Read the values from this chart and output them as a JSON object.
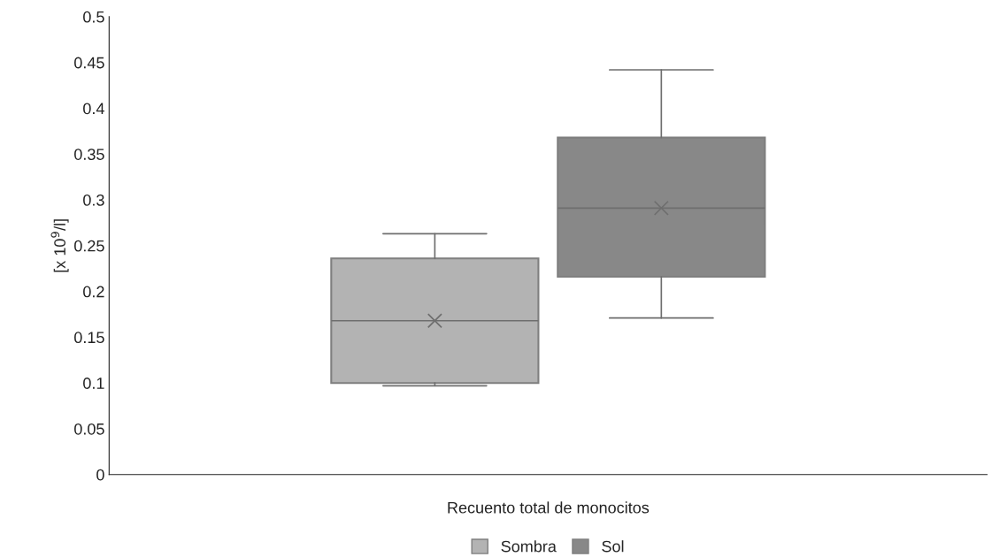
{
  "chart_data": {
    "type": "box",
    "ylabel": "[x 10$^{9}$/l]",
    "categories": [
      "Recuento total de monocitos"
    ],
    "ylim": [
      0,
      0.5
    ],
    "yticks": [
      0,
      0.05,
      0.1,
      0.15,
      0.2,
      0.25,
      0.3,
      0.35,
      0.4,
      0.45,
      0.5
    ],
    "grid": false,
    "legend": "bottom",
    "series": [
      {
        "name": "Sombra",
        "color": "#b3b3b3",
        "boxes": [
          {
            "low": 0.097,
            "q1": 0.1,
            "median": 0.168,
            "q3": 0.236,
            "high": 0.263,
            "mean": 0.168
          }
        ]
      },
      {
        "name": "Sol",
        "color": "#888888",
        "boxes": [
          {
            "low": 0.171,
            "q1": 0.216,
            "median": 0.291,
            "q3": 0.368,
            "high": 0.442,
            "mean": 0.291
          }
        ]
      }
    ]
  }
}
